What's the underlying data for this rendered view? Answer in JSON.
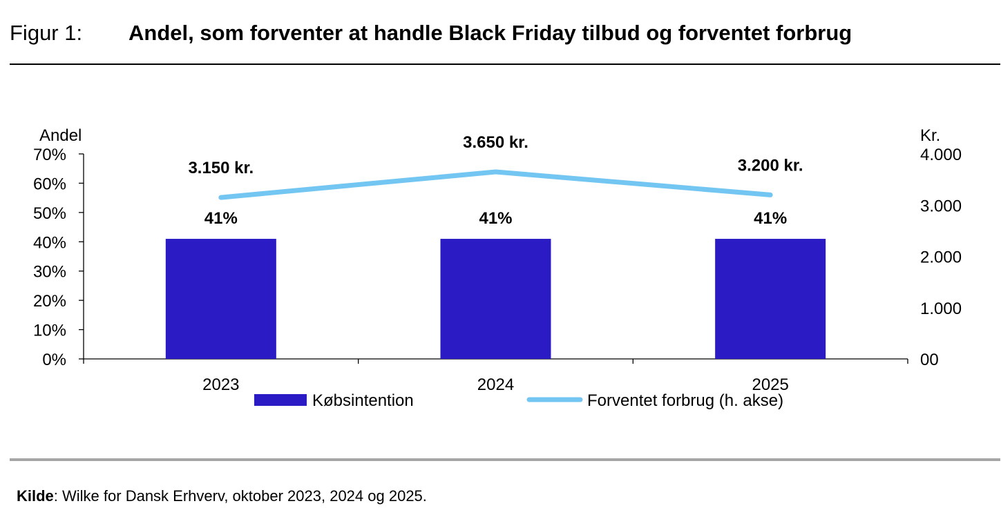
{
  "header": {
    "figure_label": "Figur 1:",
    "title": "Andel, som forventer at handle Black Friday tilbud og forventet forbrug"
  },
  "source": {
    "label": "Kilde",
    "text": ": Wilke for Dansk Erhverv, oktober 2023, 2024 og 2025."
  },
  "chart_data": {
    "type": "bar+line",
    "categories": [
      "2023",
      "2024",
      "2025"
    ],
    "left_axis": {
      "label": "Andel",
      "range": [
        0,
        70
      ],
      "ticks": [
        "0%",
        "10%",
        "20%",
        "30%",
        "40%",
        "50%",
        "60%",
        "70%"
      ]
    },
    "right_axis": {
      "label": "Kr.",
      "range": [
        0,
        4000
      ],
      "ticks": [
        "00",
        "1.000",
        "2.000",
        "3.000",
        "4.000"
      ]
    },
    "series": [
      {
        "name": "Købsintention",
        "type": "bar",
        "axis": "left",
        "values": [
          41,
          41,
          41
        ],
        "labels": [
          "41%",
          "41%",
          "41%"
        ],
        "color": "#2a1bc4"
      },
      {
        "name": "Forventet forbrug (h. akse)",
        "type": "line",
        "axis": "right",
        "values": [
          3150,
          3650,
          3200
        ],
        "labels": [
          "3.150 kr.",
          "3.650 kr.",
          "3.200 kr."
        ],
        "color": "#74c6f2"
      }
    ],
    "grid": false,
    "legend": "bottom"
  }
}
